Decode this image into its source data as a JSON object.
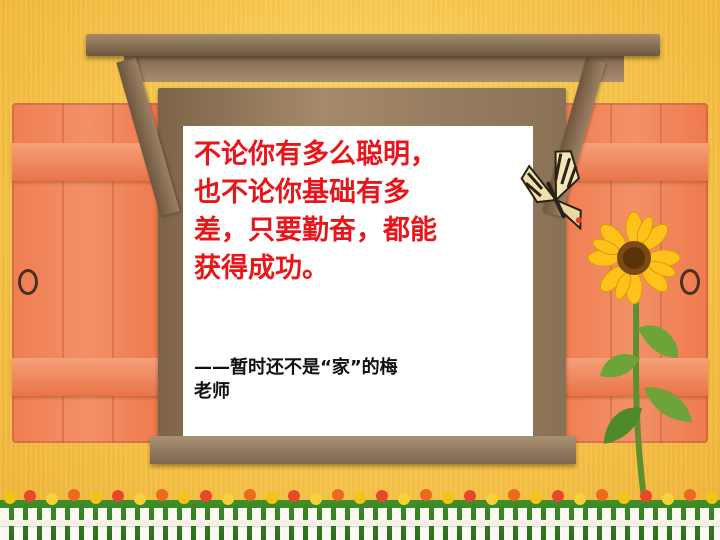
{
  "slide": {
    "quote_lines": [
      "不论你有多么聪明，",
      "也不论你基础有多",
      "差，只要勤奋，都能",
      "获得成功。"
    ],
    "attribution_lines": [
      "——暂时还不是“家”的梅",
      "老师"
    ]
  },
  "colors": {
    "quote": "#e8161a",
    "attribution": "#111111",
    "wall": "#f7c54a",
    "shutter": "#f07e52",
    "board": "#ffffff"
  },
  "decorations": [
    "butterfly-icon",
    "sunflower-icon",
    "flower-bed",
    "picket-fence"
  ]
}
